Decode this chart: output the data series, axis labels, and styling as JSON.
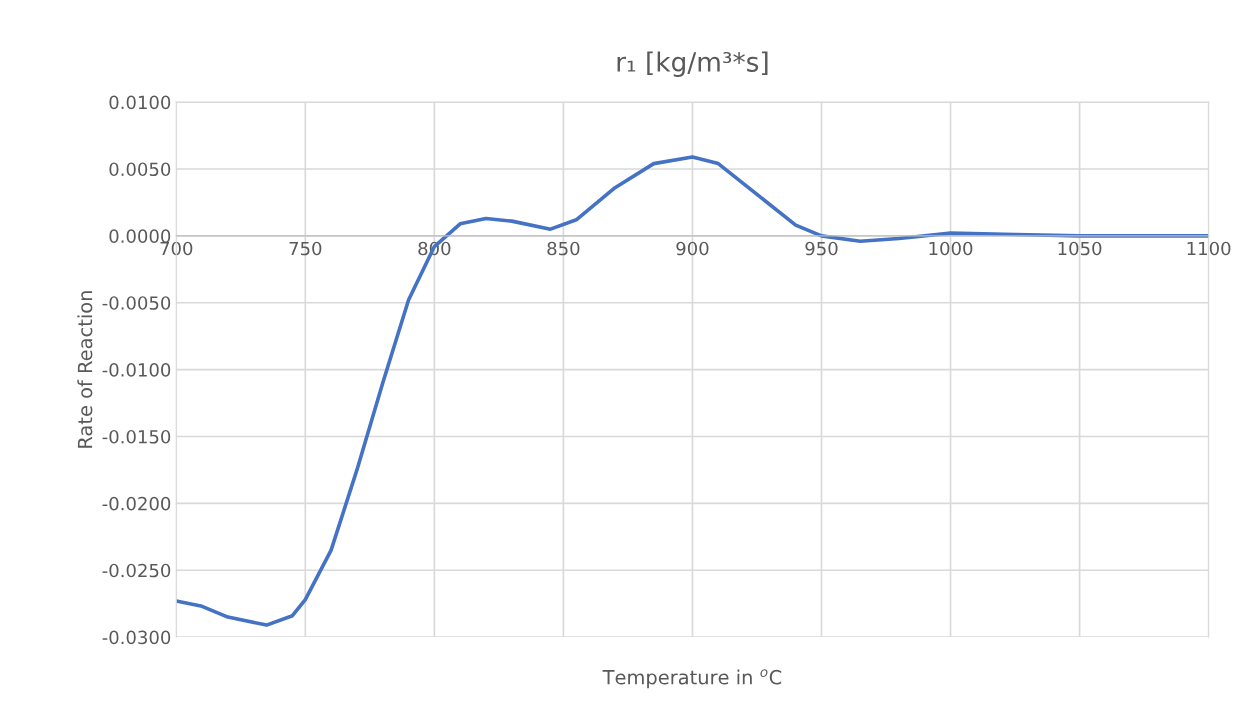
{
  "chart_data": {
    "type": "line",
    "title": "r₁ [kg/m³*s]",
    "xlabel": "Temperature in $^{o}$C",
    "ylabel": "Rate of Reaction",
    "x": [
      700,
      710,
      720,
      735,
      745,
      750,
      760,
      770,
      780,
      790,
      800,
      810,
      820,
      830,
      845,
      855,
      870,
      885,
      900,
      910,
      925,
      940,
      950,
      965,
      980,
      1000,
      1025,
      1050,
      1075,
      1100
    ],
    "series": [
      {
        "color": "#4472c4",
        "values": [
          -0.0273,
          -0.0277,
          -0.0285,
          -0.0291,
          -0.0284,
          -0.0272,
          -0.0235,
          -0.0175,
          -0.011,
          -0.0048,
          -0.0008,
          0.0009,
          0.0013,
          0.0011,
          0.0005,
          0.0012,
          0.0036,
          0.0054,
          0.0059,
          0.0054,
          0.0031,
          0.0008,
          0.0,
          -0.0004,
          -0.0002,
          0.0002,
          0.0001,
          0.0,
          0.0,
          0.0
        ]
      }
    ],
    "xlim": [
      700,
      1100
    ],
    "xticks": [
      700,
      750,
      800,
      850,
      900,
      950,
      1000,
      1050,
      1100
    ],
    "ylim": [
      -0.03,
      0.01
    ],
    "yticks": [
      {
        "value": -0.03,
        "label": "-0.0300"
      },
      {
        "value": -0.025,
        "label": "-0.0250"
      },
      {
        "value": -0.02,
        "label": "-0.0200"
      },
      {
        "value": -0.015,
        "label": "-0.0150"
      },
      {
        "value": -0.01,
        "label": "-0.0100"
      },
      {
        "value": -0.005,
        "label": "-0.0050"
      },
      {
        "value": 0,
        "label": "0.0000"
      },
      {
        "value": 0.005,
        "label": "0.0050"
      },
      {
        "value": 0.01,
        "label": "0.0100"
      }
    ],
    "grid": true,
    "marker": "none",
    "line_style": "solid"
  }
}
